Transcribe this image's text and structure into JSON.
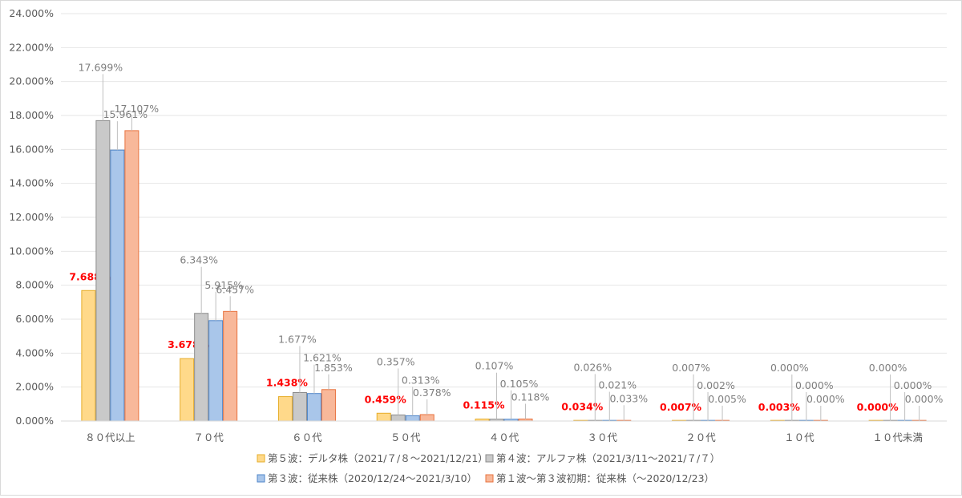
{
  "chart_data": {
    "type": "bar",
    "categories": [
      "８０代以上",
      "７０代",
      "６０代",
      "５０代",
      "４０代",
      "３０代",
      "２０代",
      "１０代",
      "１０代未満"
    ],
    "series": [
      {
        "name": "第５波：デルタ株（2021/７/８～2021/12/21）",
        "values": [
          7.688,
          3.678,
          1.438,
          0.459,
          0.115,
          0.034,
          0.007,
          0.003,
          0.0
        ],
        "labels": [
          "7.688%",
          "3.678%",
          "1.438%",
          "0.459%",
          "0.115%",
          "0.034%",
          "0.007%",
          "0.003%",
          "0.000%"
        ],
        "fill": "#ffd98a",
        "stroke": "#e6ad2a",
        "label_color": "#ff0000"
      },
      {
        "name": "第４波：アルファ株（2021/3/11～2021/７/７）",
        "values": [
          17.699,
          6.343,
          1.677,
          0.357,
          0.107,
          0.026,
          0.007,
          0.0,
          0.0
        ],
        "labels": [
          "17.699%",
          "6.343%",
          "1.677%",
          "0.357%",
          "0.107%",
          "0.026%",
          "0.007%",
          "0.000%",
          "0.000%"
        ],
        "fill": "#c9c9c9",
        "stroke": "#8c8c8c",
        "label_color": "#7f7f7f"
      },
      {
        "name": "第３波：従来株（2020/12/24～2021/3/10）",
        "values": [
          15.961,
          5.915,
          1.621,
          0.313,
          0.105,
          0.021,
          0.002,
          0.0,
          0.0
        ],
        "labels": [
          "15.961%",
          "5.915%",
          "1.621%",
          "0.313%",
          "0.105%",
          "0.021%",
          "0.002%",
          "0.000%",
          "0.000%"
        ],
        "fill": "#a9c6ea",
        "stroke": "#4f86c9",
        "label_color": "#7f7f7f"
      },
      {
        "name": "第１波～第３波初期：従来株（～2020/12/23）",
        "values": [
          17.107,
          6.457,
          1.853,
          0.378,
          0.118,
          0.033,
          0.005,
          0.0,
          0.0
        ],
        "labels": [
          "17.107%",
          "6.457%",
          "1.853%",
          "0.378%",
          "0.118%",
          "0.033%",
          "0.005%",
          "0.000%",
          "0.000%"
        ],
        "fill": "#f8b89a",
        "stroke": "#e8733f",
        "label_color": "#7f7f7f"
      }
    ],
    "y_ticks": [
      "0.000%",
      "2.000%",
      "4.000%",
      "6.000%",
      "8.000%",
      "10.000%",
      "12.000%",
      "14.000%",
      "16.000%",
      "18.000%",
      "20.000%",
      "22.000%",
      "24.000%"
    ],
    "ylim": [
      0,
      24
    ],
    "grid": true,
    "legend_position": "bottom",
    "gridline_color": "#e6e6e6",
    "axis_label_color": "#595959"
  }
}
